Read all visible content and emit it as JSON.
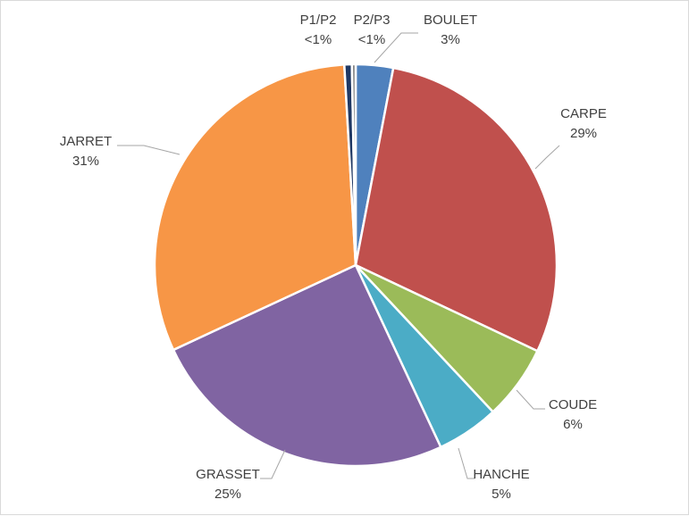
{
  "chart_data": {
    "type": "pie",
    "title": "",
    "slices": [
      {
        "label": "BOULET",
        "value": 3,
        "display": "3%",
        "color": "#4F81BD"
      },
      {
        "label": "CARPE",
        "value": 29,
        "display": "29%",
        "color": "#C0504D"
      },
      {
        "label": "COUDE",
        "value": 6,
        "display": "6%",
        "color": "#9BBB59"
      },
      {
        "label": "HANCHE",
        "value": 5,
        "display": "5%",
        "color": "#4BACC6"
      },
      {
        "label": "GRASSET",
        "value": 25,
        "display": "25%",
        "color": "#8064A2"
      },
      {
        "label": "JARRET",
        "value": 31,
        "display": "31%",
        "color": "#F79646"
      },
      {
        "label": "P1/P2",
        "value": 0.6,
        "display": "<1%",
        "color": "#1F3864"
      },
      {
        "label": "P2/P3",
        "value": 0.3,
        "display": "<1%",
        "color": "#7F7F7F"
      }
    ],
    "legend": "none",
    "data_labels": "category and percentage, outside with leader lines"
  }
}
